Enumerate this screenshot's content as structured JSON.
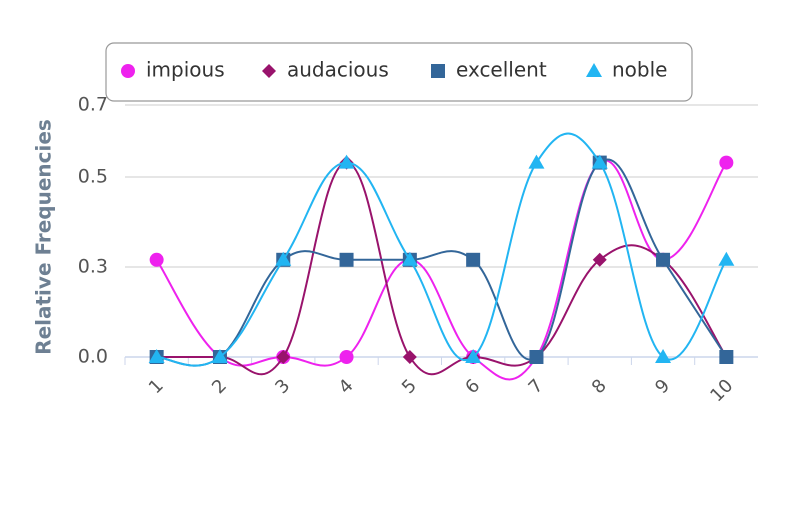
{
  "chart_data": {
    "type": "line",
    "y_axis_label": "Relative Frequencies",
    "categories": [
      "1",
      "2",
      "3",
      "4",
      "5",
      "6",
      "7",
      "8",
      "9",
      "10"
    ],
    "series": [
      {
        "name": "impious",
        "color": "#ee22ee",
        "marker": "circle",
        "values": [
          0.27,
          0,
          0,
          0,
          0.27,
          0,
          0,
          0.54,
          0.27,
          0.54
        ]
      },
      {
        "name": "audacious",
        "color": "#99136c",
        "marker": "diamond",
        "values": [
          0,
          0,
          0,
          0.54,
          0,
          0,
          0,
          0.27,
          0.27,
          0
        ]
      },
      {
        "name": "excellent",
        "color": "#336699",
        "marker": "square",
        "values": [
          0,
          0,
          0.27,
          0.27,
          0.27,
          0.27,
          0,
          0.54,
          0.27,
          0
        ]
      },
      {
        "name": "noble",
        "color": "#22b5f2",
        "marker": "triangle",
        "values": [
          0,
          0,
          0.27,
          0.54,
          0.27,
          0,
          0.54,
          0.54,
          0,
          0.27
        ]
      }
    ],
    "ylim": [
      0,
      0.7
    ],
    "yticks": [
      {
        "value": 0,
        "label": "0.0"
      },
      {
        "value": 0.25,
        "label": "0.3"
      },
      {
        "value": 0.5,
        "label": "0.5"
      },
      0.7
    ],
    "grid": true
  }
}
